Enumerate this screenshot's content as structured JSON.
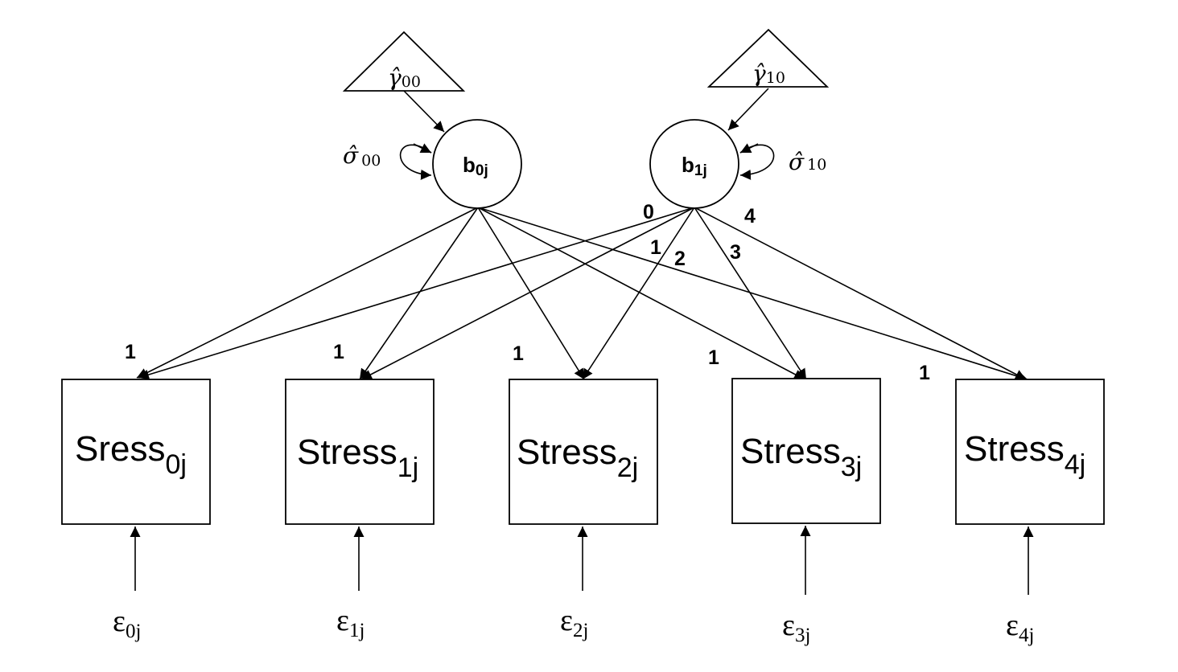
{
  "intercepts": [
    {
      "symbol": "γ̂",
      "sub": "00"
    },
    {
      "symbol": "γ̂",
      "sub": "10"
    }
  ],
  "variances": [
    {
      "symbol": "σ̂",
      "sub": "00"
    },
    {
      "symbol": "σ̂",
      "sub": "10"
    }
  ],
  "latents": [
    {
      "main": "b",
      "sub": "0j"
    },
    {
      "main": "b",
      "sub": "1j"
    }
  ],
  "observed": [
    {
      "main": "Sress",
      "sub": "0j"
    },
    {
      "main": "Stress",
      "sub": "1j"
    },
    {
      "main": "Stress",
      "sub": "2j"
    },
    {
      "main": "Stress",
      "sub": "3j"
    },
    {
      "main": "Stress",
      "sub": "4j"
    }
  ],
  "errors": [
    {
      "main": "ε",
      "sub": "0j"
    },
    {
      "main": "ε",
      "sub": "1j"
    },
    {
      "main": "ε",
      "sub": "2j"
    },
    {
      "main": "ε",
      "sub": "3j"
    },
    {
      "main": "ε",
      "sub": "4j"
    }
  ],
  "intercept_loadings": [
    "1",
    "1",
    "1",
    "1",
    "1"
  ],
  "slope_loadings": [
    "0",
    "1",
    "2",
    "3",
    "4"
  ]
}
